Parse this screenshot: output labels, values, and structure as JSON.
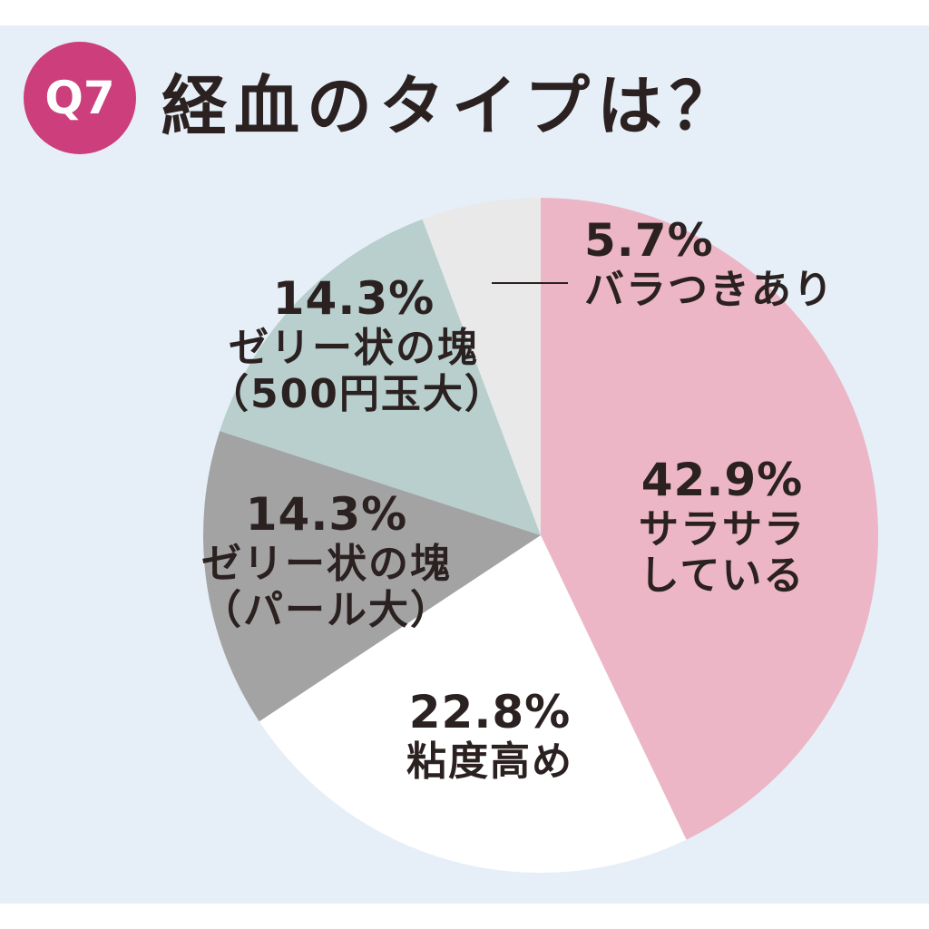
{
  "header": {
    "badge": "Q7",
    "title": "経血のタイプは？"
  },
  "colors": {
    "background": "#e6eff7",
    "badge": "#cc3f7c",
    "text": "#2b2121"
  },
  "chart_data": {
    "type": "pie",
    "title": "経血のタイプは？",
    "start_angle_deg": 0,
    "direction": "clockwise",
    "slices": [
      {
        "label_pct": "42.9%",
        "label_lines": [
          "サラサラ",
          "している"
        ],
        "value": 42.9,
        "color": "#ecb6c6"
      },
      {
        "label_pct": "22.8%",
        "label_lines": [
          "粘度高め"
        ],
        "value": 22.8,
        "color": "#ffffff"
      },
      {
        "label_pct": "14.3%",
        "label_lines": [
          "ゼリー状の塊",
          "（パール大）"
        ],
        "value": 14.3,
        "color": "#a3a3a3"
      },
      {
        "label_pct": "14.3%",
        "label_lines": [
          "ゼリー状の塊",
          "（500円玉大）"
        ],
        "value": 14.3,
        "color": "#b8cfcd"
      },
      {
        "label_pct": "5.7%",
        "label_lines": [
          "バラつきあり"
        ],
        "value": 5.7,
        "color": "#e9e9e9"
      }
    ]
  }
}
